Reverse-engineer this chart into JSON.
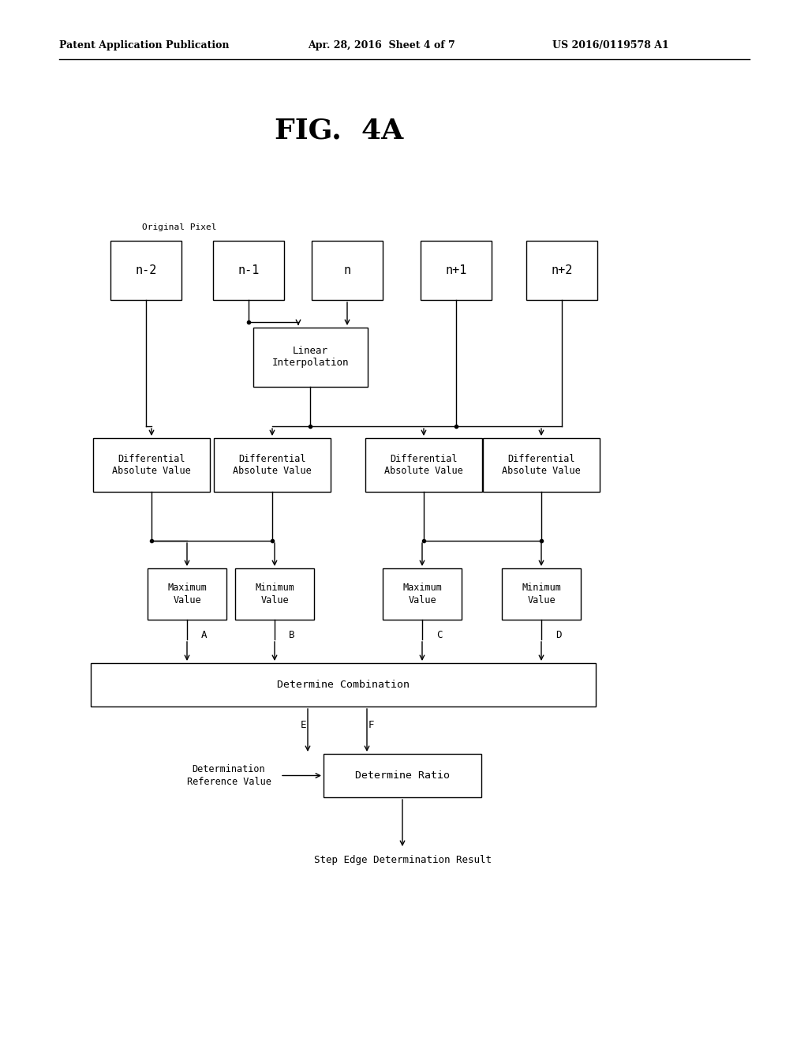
{
  "title": "FIG.  4A",
  "header_left": "Patent Application Publication",
  "header_mid": "Apr. 28, 2016  Sheet 4 of 7",
  "header_right": "US 2016/0119578 A1",
  "bg_color": "#ffffff",
  "box_color": "#000000",
  "text_color": "#000000",
  "original_pixel_label": "Original Pixel",
  "pixel_boxes": [
    "n-2",
    "n-1",
    "n",
    "n+1",
    "n+2"
  ],
  "linear_interp_label": "Linear\nInterpolation",
  "diff_abs_label": "Differential\nAbsolute Value",
  "max_label": "Maximum\nValue",
  "min_label": "Minimum\nValue",
  "abcd_labels": [
    "A",
    "B",
    "C",
    "D"
  ],
  "determine_combination_label": "Determine Combination",
  "e_label": "E",
  "f_label": "F",
  "determine_ratio_label": "Determine Ratio",
  "determination_ref_label": "Determination\nReference Value",
  "step_edge_label": "Step Edge Determination Result",
  "font_family": "monospace"
}
